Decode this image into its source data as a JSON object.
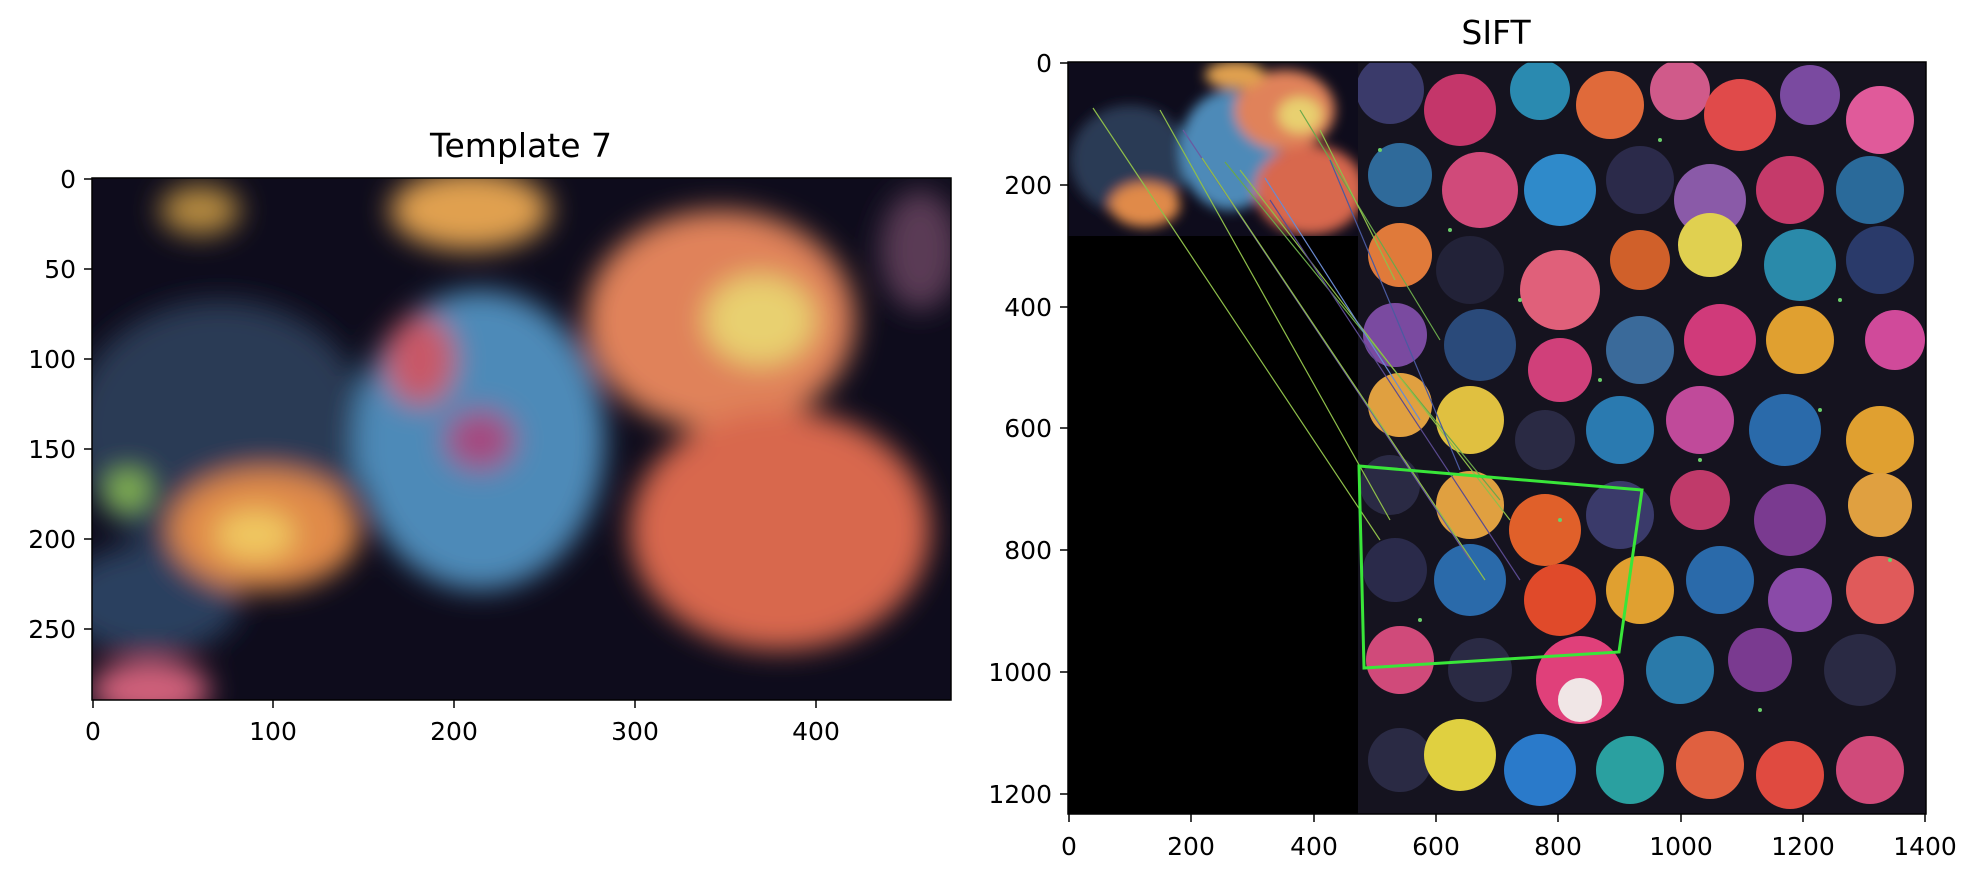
{
  "figure": {
    "left_panel": {
      "title": "Template 7",
      "x_ticks": [
        "0",
        "100",
        "200",
        "300",
        "400"
      ],
      "y_ticks": [
        "0",
        "50",
        "100",
        "150",
        "200",
        "250"
      ],
      "image_description": "blurred crop of colorful cat illustration"
    },
    "right_panel": {
      "title": "SIFT",
      "x_ticks": [
        "0",
        "200",
        "400",
        "600",
        "800",
        "1000",
        "1200",
        "1400"
      ],
      "y_ticks": [
        "0",
        "200",
        "400",
        "600",
        "800",
        "1000",
        "1200"
      ],
      "image_description": "template (top-left) and full cat mosaic side by side with green match lines and green bounding quadrilateral"
    }
  },
  "colors": {
    "match_box": "#39e639",
    "match_lines": "#8fbf4a",
    "background": "#ffffff"
  }
}
